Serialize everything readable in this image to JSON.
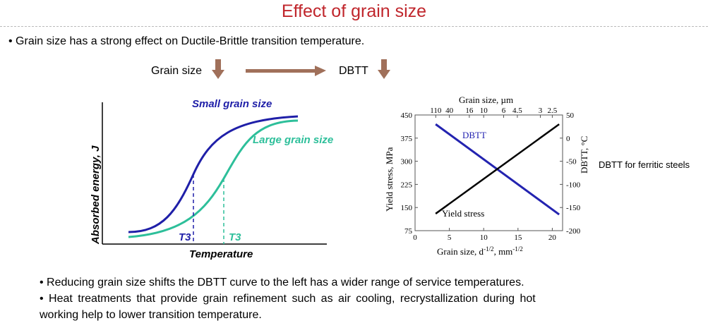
{
  "slide": {
    "title": "Effect of grain size",
    "bullet1": "• Grain size has a strong effect on Ductile-Brittle transition temperature.",
    "relation": {
      "left": "Grain size",
      "right": "DBTT",
      "arrow_icon": "down-arrow-icon",
      "link_icon": "right-arrow-icon"
    },
    "bullet2": "• Reducing grain size shifts the DBTT curve to the left  has a wider range of service temperatures.",
    "bullet3_line1": "• Heat treatments that provide grain refinement such as air cooling, recrystallization during hot",
    "bullet3_line2": "working help to lower transition temperature.",
    "arrow_color": "#a0705a"
  },
  "chart_data": [
    {
      "type": "line",
      "schematic": true,
      "xlabel": "Temperature",
      "ylabel": "Absorbed energy, J",
      "series": [
        {
          "name": "Small grain size",
          "color": "#1f1fa8",
          "marker": "T3"
        },
        {
          "name": "Large grain size",
          "color": "#2dbf9a",
          "marker": "T3"
        }
      ]
    },
    {
      "type": "line",
      "top_xlabel": "Grain size, µm",
      "top_ticks": [
        110,
        40,
        16,
        10,
        6,
        4.5,
        3,
        2.5
      ],
      "xlabel": "Grain size, d",
      "xlabel_sup": "-1/2",
      "xlabel_unit": ", mm",
      "xlabel_unit_sup": "-1/2",
      "ylabel": "Yield stress, MPa",
      "y2label": "DBTT, °C",
      "xlim": [
        0,
        22
      ],
      "ylim": [
        75,
        450
      ],
      "y2lim": [
        -200,
        50
      ],
      "xticks": [
        0,
        5,
        10,
        15,
        20
      ],
      "yticks": [
        75,
        150,
        225,
        300,
        375,
        450
      ],
      "y2ticks": [
        50,
        0,
        -50,
        -100,
        -150,
        -200
      ],
      "series": [
        {
          "name": "DBTT",
          "axis": "right",
          "color": "#2323b0",
          "x": [
            3,
            21
          ],
          "y": [
            30,
            -165
          ]
        },
        {
          "name": "Yield stress",
          "axis": "left",
          "color": "#000000",
          "x": [
            3,
            21
          ],
          "y": [
            130,
            420
          ]
        }
      ],
      "annotation": "DBTT for ferritic steels"
    }
  ]
}
